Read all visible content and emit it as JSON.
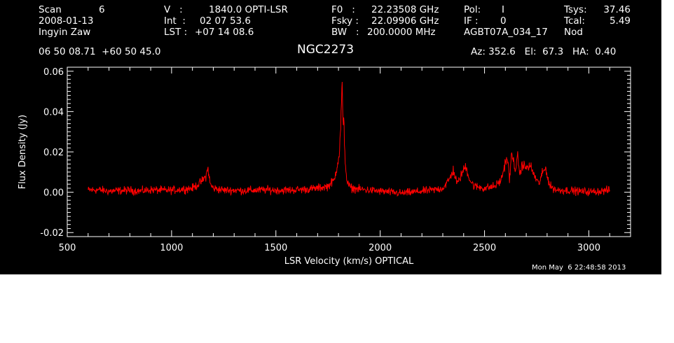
{
  "header": {
    "scan_label": "Scan",
    "scan_value": "6",
    "date": "2008-01-13",
    "observer": "Ingyin Zaw",
    "v_label": "V   :",
    "v_value": "1840.0 OPTI-LSR",
    "int_label": "Int  :",
    "int_value": "02 07 53.6",
    "lst_label": "LST :",
    "lst_value": "+07 14 08.6",
    "f0_label": "F0   :",
    "f0_value": "22.23508 GHz",
    "fsky_label": "Fsky :",
    "fsky_value": "22.09906 GHz",
    "bw_label": "BW   :",
    "bw_value": "200.0000 MHz",
    "pol_label": "Pol:",
    "pol_value": "I",
    "if_label": "IF :",
    "if_value": "0",
    "project": "AGBT07A_034_17",
    "tsys_label": "Tsys:",
    "tsys_value": "37.46",
    "tcal_label": "Tcal:",
    "tcal_value": "5.49",
    "mode": "Nod",
    "coordinates": "06 50 08.71  +60 50 45.0",
    "source": "NGC2273",
    "az_el_ha": "Az: 352.6   El:  67.3   HA:  0.40"
  },
  "footer": {
    "timestamp": "Mon May  6 22:48:58 2013"
  },
  "chart_data": {
    "type": "line",
    "xlabel": "LSR Velocity (km/s) OPTICAL",
    "ylabel": "Flux Density (Jy)",
    "xlim": [
      500,
      3200
    ],
    "ylim": [
      -0.022,
      0.062
    ],
    "xticks": [
      500,
      1000,
      1500,
      2000,
      2500,
      3000
    ],
    "xtick_labels": [
      "500",
      "1000",
      "1500",
      "2000",
      "2500",
      "3000"
    ],
    "yticks": [
      -0.02,
      0.0,
      0.02,
      0.04,
      0.06
    ],
    "ytick_labels": [
      "-0.02",
      "0.00",
      "0.02",
      "0.04",
      "0.06"
    ],
    "line_color": "#ff0000",
    "axis_color": "#ffffff",
    "background": "#000000",
    "noise_rms": 0.0012,
    "series": [
      {
        "x": [
          600,
          650,
          700,
          750,
          800,
          850,
          900,
          950,
          1000,
          1050,
          1100,
          1130,
          1150,
          1165,
          1175,
          1185,
          1200,
          1250,
          1300,
          1350,
          1400,
          1450,
          1500,
          1550,
          1600,
          1650,
          1700,
          1750,
          1780,
          1795,
          1805,
          1812,
          1817,
          1820,
          1823,
          1826,
          1830,
          1835,
          1840,
          1850,
          1865,
          1900,
          1950,
          2000,
          2050,
          2100,
          2150,
          2200,
          2250,
          2300,
          2330,
          2350,
          2370,
          2390,
          2410,
          2430,
          2450,
          2500,
          2550,
          2580,
          2600,
          2610,
          2620,
          2630,
          2650,
          2660,
          2670,
          2680,
          2700,
          2720,
          2740,
          2760,
          2780,
          2795,
          2805,
          2815,
          2830,
          2850,
          2900,
          2950,
          3000,
          3050,
          3100
        ],
        "y": [
          0.001,
          0.0012,
          0.0005,
          0.0008,
          0.001,
          0.0006,
          0.0012,
          0.001,
          0.001,
          0.0015,
          0.002,
          0.004,
          0.006,
          0.008,
          0.012,
          0.004,
          0.002,
          0.001,
          0.001,
          0.0008,
          0.001,
          0.0012,
          0.001,
          0.001,
          0.0012,
          0.0015,
          0.002,
          0.003,
          0.006,
          0.014,
          0.02,
          0.036,
          0.056,
          0.04,
          0.03,
          0.037,
          0.02,
          0.012,
          0.006,
          0.003,
          0.002,
          0.0015,
          0.001,
          0.0005,
          0.0,
          -0.0005,
          0.0,
          0.0005,
          0.001,
          0.002,
          0.006,
          0.011,
          0.004,
          0.009,
          0.013,
          0.006,
          0.003,
          0.002,
          0.003,
          0.006,
          0.015,
          0.017,
          0.006,
          0.019,
          0.011,
          0.018,
          0.008,
          0.014,
          0.012,
          0.013,
          0.008,
          0.004,
          0.01,
          0.012,
          0.006,
          0.003,
          0.002,
          0.001,
          0.001,
          0.0005,
          0.0002,
          0.0005,
          0.001
        ]
      }
    ]
  }
}
